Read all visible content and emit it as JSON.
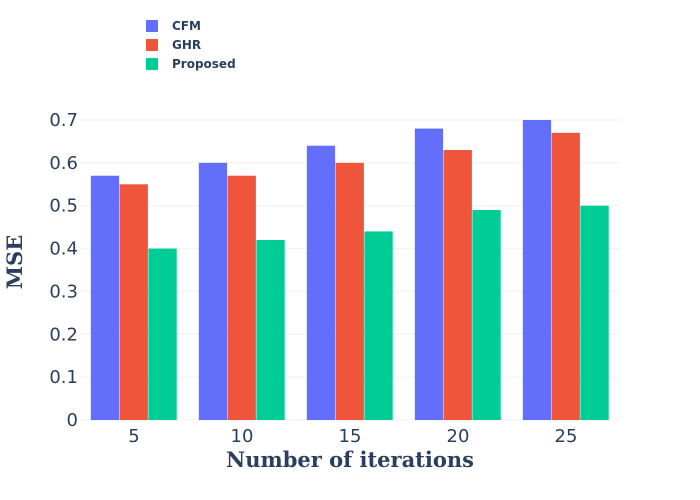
{
  "chart_data": {
    "type": "bar",
    "categories": [
      "5",
      "10",
      "15",
      "20",
      "25"
    ],
    "series": [
      {
        "name": "CFM",
        "values": [
          0.57,
          0.6,
          0.64,
          0.68,
          0.7
        ],
        "color": "#636efa"
      },
      {
        "name": "GHR",
        "values": [
          0.55,
          0.57,
          0.6,
          0.63,
          0.67
        ],
        "color": "#ef553b"
      },
      {
        "name": "Proposed",
        "values": [
          0.4,
          0.42,
          0.44,
          0.49,
          0.5
        ],
        "color": "#00cc96"
      }
    ],
    "xlabel": "Number of iterations",
    "ylabel": "MSE",
    "ylim": [
      0,
      0.7
    ],
    "yticks": [
      "0",
      "0.1",
      "0.2",
      "0.3",
      "0.4",
      "0.5",
      "0.6",
      "0.7"
    ],
    "grid": true,
    "legend_position": "top-left"
  }
}
